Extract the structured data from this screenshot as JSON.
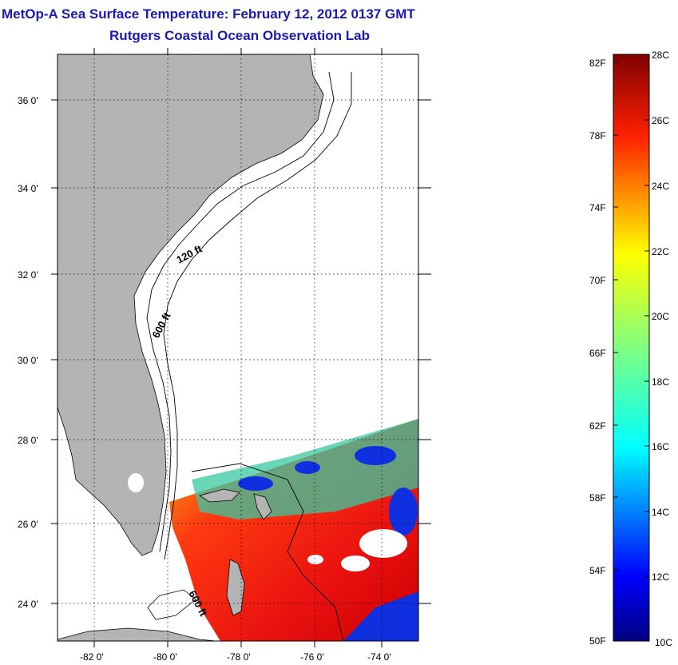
{
  "title": "MetOp-A Sea Surface Temperature:  February 12, 2012 0137 GMT",
  "subtitle": "Rutgers Coastal Ocean Observation Lab",
  "map": {
    "lat_labels": [
      "36 0'",
      "34 0'",
      "32 0'",
      "30 0'",
      "28 0'",
      "26 0'",
      "24 0'"
    ],
    "lon_labels": [
      "-82 0'",
      "-80 0'",
      "-78 0'",
      "-76 0'",
      "-74 0'"
    ],
    "contour_labels": [
      "120 ft",
      "600 ft",
      "600 ft"
    ],
    "colors": {
      "land": "#b4b4b4",
      "water": "#ffffff"
    }
  },
  "colorbar": {
    "fahrenheit_labels": [
      "82F",
      "78F",
      "74F",
      "70F",
      "66F",
      "62F",
      "58F",
      "54F",
      "50F"
    ],
    "celsius_labels": [
      "28C",
      "26C",
      "24C",
      "22C",
      "20C",
      "18C",
      "16C",
      "14C",
      "12C",
      "10C"
    ]
  }
}
